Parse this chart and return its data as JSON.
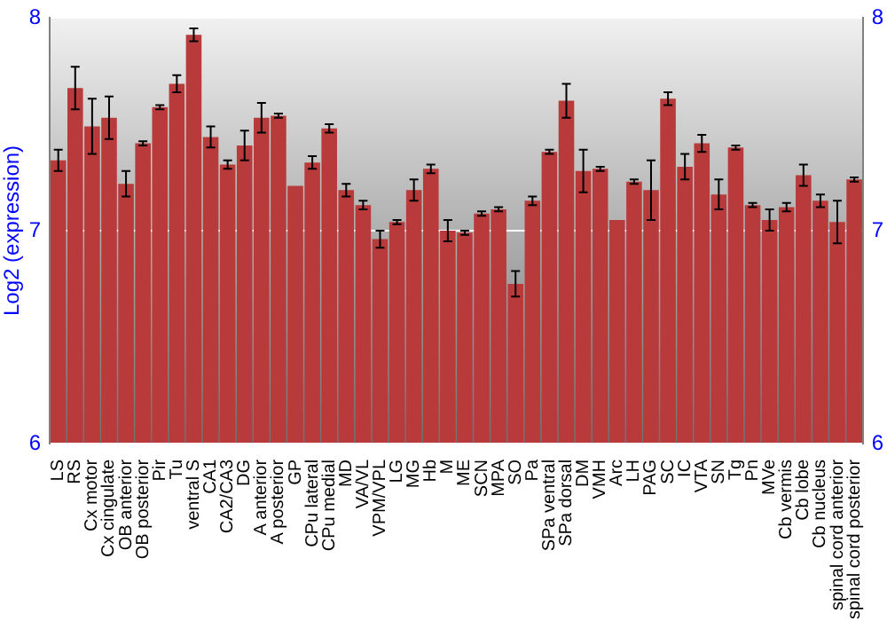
{
  "chart_data": {
    "type": "bar",
    "ylabel": "Log2 (expression)",
    "categories": [
      "LS",
      "RS",
      "Cx motor",
      "Cx cingulate",
      "OB anterior",
      "OB posterior",
      "Pir",
      "Tu",
      "ventral S",
      "CA1",
      "CA2/CA3",
      "DG",
      "A anterior",
      "A posterior",
      "GP",
      "CPu lateral",
      "CPu medial",
      "MD",
      "VA/VL",
      "VPM/VPL",
      "LG",
      "MG",
      "Hb",
      "M",
      "ME",
      "SCN",
      "MPA",
      "SO",
      "Pa",
      "SPa ventral",
      "SPa dorsal",
      "DM",
      "VMH",
      "Arc",
      "LH",
      "PAG",
      "SC",
      "IC",
      "VTA",
      "SN",
      "Tg",
      "Pn",
      "MVe",
      "Cb vermis",
      "Cb lobe",
      "Cb nucleus",
      "spinal cord anterior",
      "spinal cord posterior"
    ],
    "values": [
      7.33,
      7.67,
      7.49,
      7.53,
      7.22,
      7.41,
      7.58,
      7.69,
      7.92,
      7.44,
      7.31,
      7.4,
      7.53,
      7.54,
      7.21,
      7.32,
      7.48,
      7.19,
      7.12,
      6.96,
      7.04,
      7.19,
      7.29,
      7.0,
      6.99,
      7.08,
      7.1,
      6.75,
      7.14,
      7.37,
      7.61,
      7.28,
      7.29,
      7.05,
      7.23,
      7.19,
      7.62,
      7.3,
      7.41,
      7.17,
      7.39,
      7.12,
      7.05,
      7.11,
      7.26,
      7.14,
      7.04,
      7.24
    ],
    "errors": [
      0.05,
      0.1,
      0.13,
      0.1,
      0.06,
      0.01,
      0.01,
      0.04,
      0.03,
      0.05,
      0.02,
      0.07,
      0.07,
      0.01,
      null,
      0.03,
      0.02,
      0.03,
      0.02,
      0.04,
      0.01,
      0.05,
      0.02,
      0.05,
      0.01,
      0.01,
      0.01,
      0.06,
      0.02,
      0.01,
      0.08,
      0.1,
      0.01,
      null,
      0.01,
      0.14,
      0.03,
      0.06,
      0.04,
      0.07,
      0.01,
      0.01,
      0.05,
      0.02,
      0.05,
      0.03,
      0.1,
      0.01
    ],
    "color": "#b83a3a",
    "ylim": [
      6,
      8
    ],
    "yticks": [
      6,
      7,
      8
    ],
    "y2lim": [
      6,
      8
    ],
    "y2ticks": [
      6,
      7,
      8
    ],
    "grid": "y"
  }
}
